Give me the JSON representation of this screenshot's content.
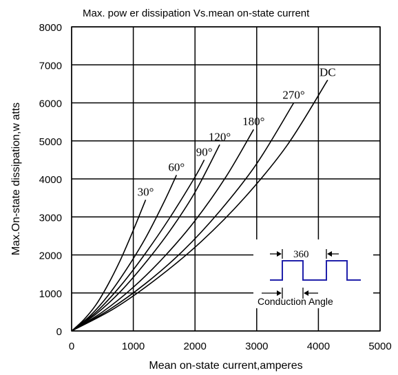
{
  "chart_data": {
    "type": "line",
    "title": "Max. pow er dissipation Vs.mean on-state current",
    "xlabel": "Mean  on-state current,amperes",
    "ylabel": "Max.On-state dissipation,w atts",
    "xlim": [
      0,
      5000
    ],
    "ylim": [
      0,
      8000
    ],
    "xticks": [
      "0",
      "1000",
      "2000",
      "3000",
      "4000",
      "5000"
    ],
    "yticks": [
      "0",
      "1000",
      "2000",
      "3000",
      "4000",
      "5000",
      "6000",
      "7000",
      "8000"
    ],
    "grid": true,
    "series": [
      {
        "name": "30°",
        "x": [
          0,
          200,
          400,
          600,
          800,
          1000,
          1200
        ],
        "y": [
          0,
          300,
          700,
          1250,
          1900,
          2650,
          3450
        ]
      },
      {
        "name": "60°",
        "x": [
          0,
          300,
          600,
          900,
          1200,
          1500,
          1700
        ],
        "y": [
          0,
          400,
          950,
          1650,
          2450,
          3400,
          4100
        ]
      },
      {
        "name": "90°",
        "x": [
          0,
          400,
          800,
          1200,
          1600,
          2000,
          2150
        ],
        "y": [
          0,
          500,
          1200,
          2050,
          3000,
          4050,
          4500
        ]
      },
      {
        "name": "120°",
        "x": [
          0,
          400,
          800,
          1200,
          1600,
          2000,
          2400
        ],
        "y": [
          0,
          450,
          1050,
          1800,
          2650,
          3650,
          4900
        ]
      },
      {
        "name": "180°",
        "x": [
          0,
          500,
          1000,
          1500,
          2000,
          2500,
          2950
        ],
        "y": [
          0,
          500,
          1150,
          1950,
          2900,
          4050,
          5300
        ]
      },
      {
        "name": "270°",
        "x": [
          0,
          600,
          1200,
          1800,
          2400,
          3000,
          3600
        ],
        "y": [
          0,
          550,
          1250,
          2100,
          3150,
          4400,
          6000
        ]
      },
      {
        "name": "DC",
        "x": [
          0,
          700,
          1400,
          2100,
          2800,
          3500,
          4150
        ],
        "y": [
          0,
          600,
          1400,
          2350,
          3500,
          4900,
          6600
        ]
      }
    ],
    "inset": {
      "top_label": "360",
      "bottom_label": "Conduction Angle",
      "waveform_color": "#1f1faa"
    }
  }
}
